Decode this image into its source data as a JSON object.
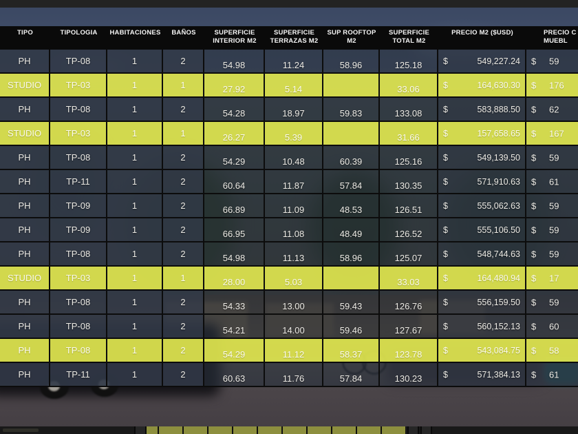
{
  "table": {
    "currency_symbol": "$",
    "colors": {
      "highlight_yellow": "rgba(218,224,78,0.95)",
      "header_bg": "#0a0a0a",
      "row_dark": "rgba(45,53,66,0.82)",
      "footer_olive": "#8d8f3e"
    },
    "columns": [
      {
        "id": "tipo",
        "label_lines": [
          "TIPO"
        ]
      },
      {
        "id": "tipologia",
        "label_lines": [
          "TIPOLOGIA"
        ]
      },
      {
        "id": "habitaciones",
        "label_lines": [
          "HABITACIONES"
        ]
      },
      {
        "id": "banos",
        "label_lines": [
          "BAÑOS"
        ]
      },
      {
        "id": "sup_interior",
        "label_lines": [
          "SUPERFICIE",
          "INTERIOR M2"
        ]
      },
      {
        "id": "sup_terrazas",
        "label_lines": [
          "SUPERFICIE",
          "TERRAZAS M2"
        ]
      },
      {
        "id": "sup_rooftop",
        "label_lines": [
          "SUP ROOFTOP",
          "M2"
        ]
      },
      {
        "id": "sup_total",
        "label_lines": [
          "SUPERFICIE",
          "TOTAL M2"
        ]
      },
      {
        "id": "precio_m2",
        "label_lines": [
          "PRECIO M2 ($USD)"
        ]
      },
      {
        "id": "precio_muebles",
        "label_lines": [
          "PRECIO C",
          "MUEBL"
        ],
        "clipped": true
      }
    ],
    "rows": [
      {
        "tipo": "PH",
        "tipologia": "TP-08",
        "habitaciones": "1",
        "banos": "2",
        "sup_interior": "54.98",
        "sup_terrazas": "11.24",
        "sup_rooftop": "58.96",
        "sup_total": "125.18",
        "precio_m2": "549,227.24",
        "precio_muebles_partial": "59",
        "highlight": false
      },
      {
        "tipo": "STUDIO",
        "tipologia": "TP-03",
        "habitaciones": "1",
        "banos": "1",
        "sup_interior": "27.92",
        "sup_terrazas": "5.14",
        "sup_rooftop": "",
        "sup_total": "33.06",
        "precio_m2": "164,630.30",
        "precio_muebles_partial": "176",
        "highlight": true
      },
      {
        "tipo": "PH",
        "tipologia": "TP-08",
        "habitaciones": "1",
        "banos": "2",
        "sup_interior": "54.28",
        "sup_terrazas": "18.97",
        "sup_rooftop": "59.83",
        "sup_total": "133.08",
        "precio_m2": "583,888.50",
        "precio_muebles_partial": "62",
        "highlight": false
      },
      {
        "tipo": "STUDIO",
        "tipologia": "TP-03",
        "habitaciones": "1",
        "banos": "1",
        "sup_interior": "26.27",
        "sup_terrazas": "5.39",
        "sup_rooftop": "",
        "sup_total": "31.66",
        "precio_m2": "157,658.65",
        "precio_muebles_partial": "167",
        "highlight": true
      },
      {
        "tipo": "PH",
        "tipologia": "TP-08",
        "habitaciones": "1",
        "banos": "2",
        "sup_interior": "54.29",
        "sup_terrazas": "10.48",
        "sup_rooftop": "60.39",
        "sup_total": "125.16",
        "precio_m2": "549,139.50",
        "precio_muebles_partial": "59",
        "highlight": false
      },
      {
        "tipo": "PH",
        "tipologia": "TP-11",
        "habitaciones": "1",
        "banos": "2",
        "sup_interior": "60.64",
        "sup_terrazas": "11.87",
        "sup_rooftop": "57.84",
        "sup_total": "130.35",
        "precio_m2": "571,910.63",
        "precio_muebles_partial": "61",
        "highlight": false
      },
      {
        "tipo": "PH",
        "tipologia": "TP-09",
        "habitaciones": "1",
        "banos": "2",
        "sup_interior": "66.89",
        "sup_terrazas": "11.09",
        "sup_rooftop": "48.53",
        "sup_total": "126.51",
        "precio_m2": "555,062.63",
        "precio_muebles_partial": "59",
        "highlight": false
      },
      {
        "tipo": "PH",
        "tipologia": "TP-09",
        "habitaciones": "1",
        "banos": "2",
        "sup_interior": "66.95",
        "sup_terrazas": "11.08",
        "sup_rooftop": "48.49",
        "sup_total": "126.52",
        "precio_m2": "555,106.50",
        "precio_muebles_partial": "59",
        "highlight": false
      },
      {
        "tipo": "PH",
        "tipologia": "TP-08",
        "habitaciones": "1",
        "banos": "2",
        "sup_interior": "54.98",
        "sup_terrazas": "11.13",
        "sup_rooftop": "58.96",
        "sup_total": "125.07",
        "precio_m2": "548,744.63",
        "precio_muebles_partial": "59",
        "highlight": false
      },
      {
        "tipo": "STUDIO",
        "tipologia": "TP-03",
        "habitaciones": "1",
        "banos": "1",
        "sup_interior": "28.00",
        "sup_terrazas": "5.03",
        "sup_rooftop": "",
        "sup_total": "33.03",
        "precio_m2": "164,480.94",
        "precio_muebles_partial": "17",
        "highlight": true
      },
      {
        "tipo": "PH",
        "tipologia": "TP-08",
        "habitaciones": "1",
        "banos": "2",
        "sup_interior": "54.33",
        "sup_terrazas": "13.00",
        "sup_rooftop": "59.43",
        "sup_total": "126.76",
        "precio_m2": "556,159.50",
        "precio_muebles_partial": "59",
        "highlight": false
      },
      {
        "tipo": "PH",
        "tipologia": "TP-08",
        "habitaciones": "1",
        "banos": "2",
        "sup_interior": "54.21",
        "sup_terrazas": "14.00",
        "sup_rooftop": "59.46",
        "sup_total": "127.67",
        "precio_m2": "560,152.13",
        "precio_muebles_partial": "60",
        "highlight": false
      },
      {
        "tipo": "PH",
        "tipologia": "TP-08",
        "habitaciones": "1",
        "banos": "2",
        "sup_interior": "54.29",
        "sup_terrazas": "11.12",
        "sup_rooftop": "58.37",
        "sup_total": "123.78",
        "precio_m2": "543,084.75",
        "precio_muebles_partial": "58",
        "highlight": true
      },
      {
        "tipo": "PH",
        "tipologia": "TP-11",
        "habitaciones": "1",
        "banos": "2",
        "sup_interior": "60.63",
        "sup_terrazas": "11.76",
        "sup_rooftop": "57.84",
        "sup_total": "130.23",
        "precio_m2": "571,384.13",
        "precio_muebles_partial": "61",
        "highlight": false
      }
    ]
  }
}
